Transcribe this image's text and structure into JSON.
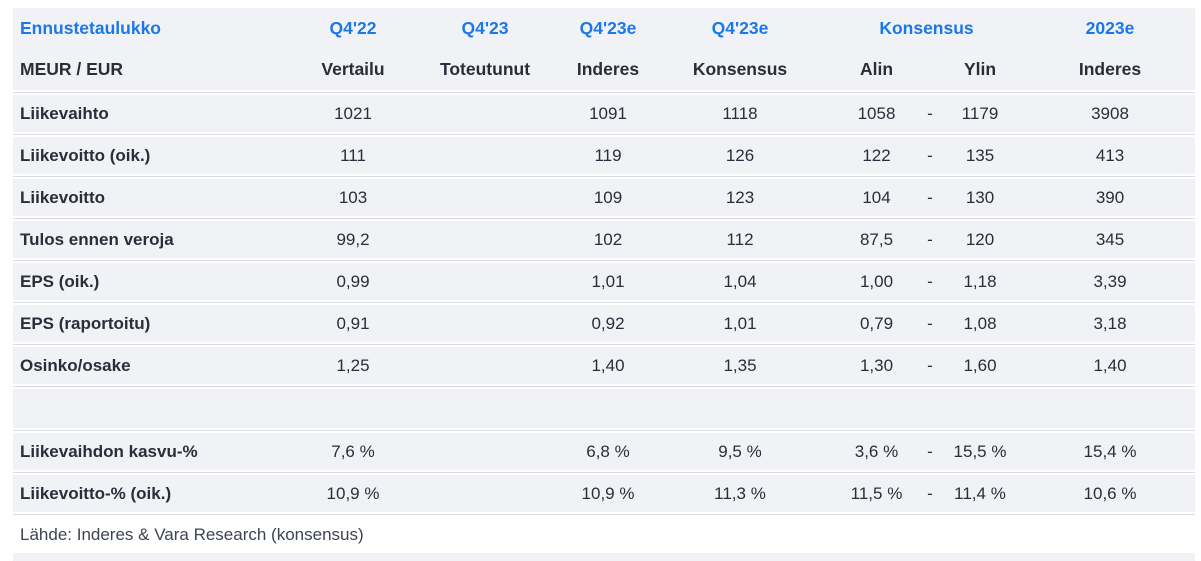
{
  "colors": {
    "accent_blue": "#1b78e8",
    "text_dark": "#2a2e39",
    "row_background": "#f1f2f6",
    "hairline": "#d9dbe0",
    "footer_text": "#3d4451"
  },
  "table": {
    "header_row1": {
      "title": "Ennustetaulukko",
      "vertailu": "Q4'22",
      "toteutunut": "Q4'23",
      "inderes": "Q4'23e",
      "konsensus": "Q4'23e",
      "konsensus_range": "Konsensus",
      "y2023e": "2023e"
    },
    "header_row2": {
      "title": "MEUR / EUR",
      "vertailu": "Vertailu",
      "toteutunut": "Toteutunut",
      "inderes": "Inderes",
      "konsensus": "Konsensus",
      "alin": "Alin",
      "ylin": "Ylin",
      "y2023e": "Inderes"
    },
    "rows": [
      {
        "label": "Liikevaihto",
        "vertailu": "1021",
        "toteutunut": "",
        "inderes": "1091",
        "konsensus": "1118",
        "alin": "1058",
        "dash": "-",
        "ylin": "1179",
        "y2023e": "3908"
      },
      {
        "label": "Liikevoitto (oik.)",
        "vertailu": "111",
        "toteutunut": "",
        "inderes": "119",
        "konsensus": "126",
        "alin": "122",
        "dash": "-",
        "ylin": "135",
        "y2023e": "413"
      },
      {
        "label": "Liikevoitto",
        "vertailu": "103",
        "toteutunut": "",
        "inderes": "109",
        "konsensus": "123",
        "alin": "104",
        "dash": "-",
        "ylin": "130",
        "y2023e": "390"
      },
      {
        "label": "Tulos ennen veroja",
        "vertailu": "99,2",
        "toteutunut": "",
        "inderes": "102",
        "konsensus": "112",
        "alin": "87,5",
        "dash": "-",
        "ylin": "120",
        "y2023e": "345"
      },
      {
        "label": "EPS (oik.)",
        "vertailu": "0,99",
        "toteutunut": "",
        "inderes": "1,01",
        "konsensus": "1,04",
        "alin": "1,00",
        "dash": "-",
        "ylin": "1,18",
        "y2023e": "3,39"
      },
      {
        "label": "EPS (raportoitu)",
        "vertailu": "0,91",
        "toteutunut": "",
        "inderes": "0,92",
        "konsensus": "1,01",
        "alin": "0,79",
        "dash": "-",
        "ylin": "1,08",
        "y2023e": "3,18"
      },
      {
        "label": "Osinko/osake",
        "vertailu": "1,25",
        "toteutunut": "",
        "inderes": "1,40",
        "konsensus": "1,35",
        "alin": "1,30",
        "dash": "-",
        "ylin": "1,60",
        "y2023e": "1,40"
      },
      {
        "spacer": true
      },
      {
        "label": "Liikevaihdon kasvu-%",
        "vertailu": "7,6 %",
        "toteutunut": "",
        "inderes": "6,8 %",
        "konsensus": "9,5 %",
        "alin": "3,6 %",
        "dash": "-",
        "ylin": "15,5 %",
        "y2023e": "15,4 %"
      },
      {
        "label": "Liikevoitto-% (oik.)",
        "vertailu": "10,9 %",
        "toteutunut": "",
        "inderes": "10,9 %",
        "konsensus": "11,3 %",
        "alin": "11,5 %",
        "dash": "-",
        "ylin": "11,4 %",
        "y2023e": "10,6 %"
      }
    ],
    "footer": "Lähde: Inderes & Vara Research (konsensus)"
  }
}
